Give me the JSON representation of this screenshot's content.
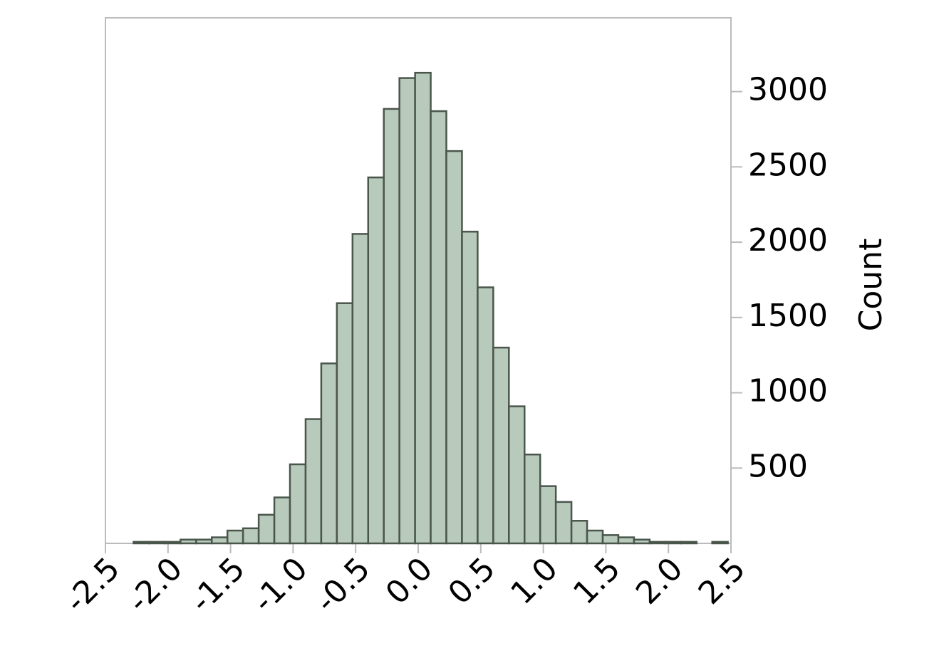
{
  "chart_data": {
    "type": "histogram",
    "y_label": "Count",
    "bins": [
      -2.275,
      -2.15,
      -2.025,
      -1.9,
      -1.775,
      -1.65,
      -1.525,
      -1.4,
      -1.275,
      -1.15,
      -1.025,
      -0.9,
      -0.775,
      -0.65,
      -0.525,
      -0.4,
      -0.275,
      -0.15,
      -0.025,
      0.1,
      0.225,
      0.35,
      0.475,
      0.6,
      0.725,
      0.85,
      0.975,
      1.1,
      1.225,
      1.35,
      1.475,
      1.6,
      1.725,
      1.85,
      1.975,
      2.1,
      2.225,
      2.35,
      2.475
    ],
    "values": [
      10,
      10,
      10,
      25,
      25,
      40,
      85,
      100,
      190,
      305,
      525,
      825,
      1195,
      1595,
      2055,
      2430,
      2885,
      3090,
      3125,
      2870,
      2605,
      2070,
      1700,
      1300,
      910,
      590,
      380,
      275,
      150,
      85,
      55,
      40,
      25,
      10,
      10,
      10,
      0,
      10
    ],
    "color": "#b8cabb",
    "edge_color": "#4a564c",
    "xlim": [
      -2.5,
      2.5
    ],
    "xticks": [
      -2.5,
      {
        "value": -2,
        "label": "-2.0"
      },
      -1.5,
      {
        "value": -1,
        "label": "-1.0"
      },
      -0.5,
      {
        "value": 0,
        "label": "0.0"
      },
      0.5,
      {
        "value": 1,
        "label": "1.0"
      },
      1.5,
      {
        "value": 2,
        "label": "2.0"
      },
      2.5
    ],
    "ylim": [
      0,
      3490
    ],
    "yticks": [
      500,
      1000,
      1500,
      2000,
      2500,
      3000
    ],
    "y_axis_side": "right"
  }
}
